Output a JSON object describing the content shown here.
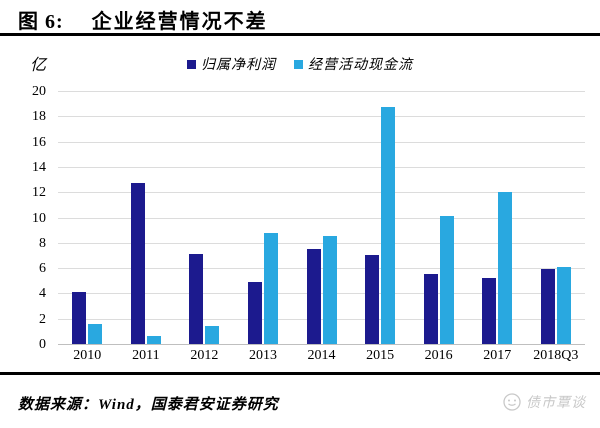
{
  "title": {
    "prefix": "图 6:",
    "text": "企业经营情况不差"
  },
  "chart_data": {
    "type": "bar",
    "title": "企业经营情况不差",
    "unit_label": "亿",
    "categories": [
      "2010",
      "2011",
      "2012",
      "2013",
      "2014",
      "2015",
      "2016",
      "2017",
      "2018Q3"
    ],
    "series": [
      {
        "name": "归属净利润",
        "color": "#1c1a8e",
        "values": [
          4.1,
          12.7,
          7.1,
          4.9,
          7.5,
          7.0,
          5.5,
          5.2,
          5.9
        ]
      },
      {
        "name": "经营活动现金流",
        "color": "#29a8e0",
        "values": [
          1.6,
          0.6,
          1.4,
          8.8,
          8.5,
          18.7,
          10.1,
          12.0,
          6.1
        ]
      }
    ],
    "ylim": [
      0,
      20
    ],
    "ytick_step": 2,
    "grid": true,
    "legend_position": "top-center"
  },
  "footer": {
    "source": "数据来源：Wind，国泰君安证券研究",
    "watermark": "债市覃谈"
  },
  "colors": {
    "bar_navy": "#1c1a8e",
    "bar_lightblue": "#29a8e0",
    "gridline": "#dcdcdc",
    "baseline": "#bfbfbf",
    "rule": "#000000",
    "watermark": "#c8c8c8"
  }
}
